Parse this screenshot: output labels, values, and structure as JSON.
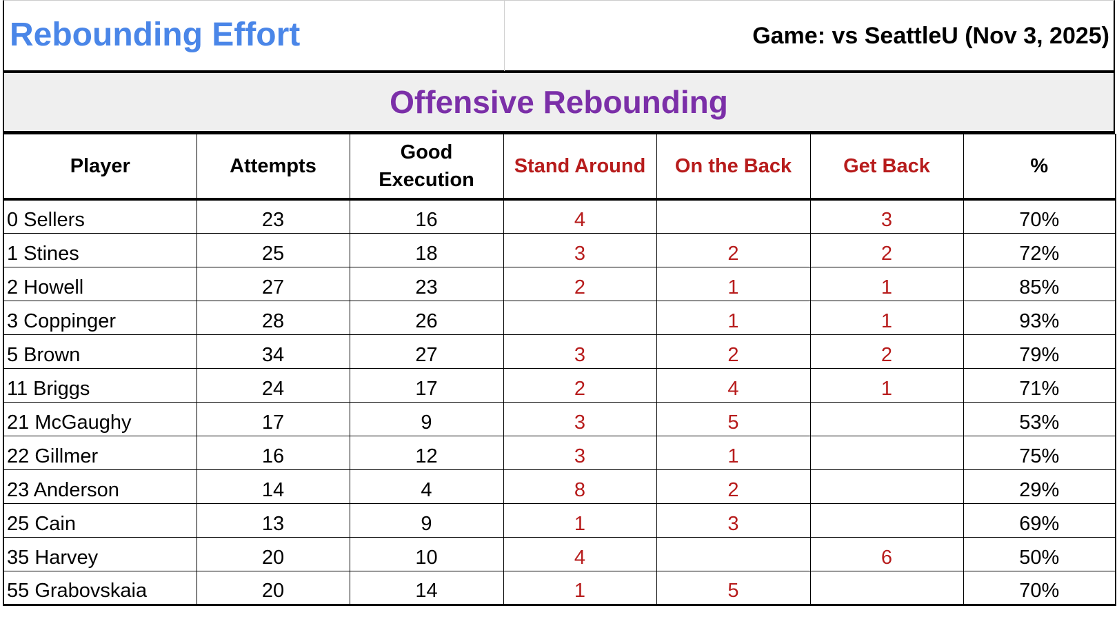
{
  "header": {
    "title": "Rebounding Effort",
    "game": "Game: vs SeattleU (Nov 3, 2025)"
  },
  "section_title": "Offensive Rebounding",
  "table": {
    "columns": [
      "Player",
      "Attempts",
      "Good Execution",
      "Stand Around",
      "On the Back",
      "Get Back",
      "%"
    ],
    "highlight_columns": [
      3,
      4,
      5
    ],
    "highlight_color": "#b71c1c",
    "rows": [
      [
        "0 Sellers",
        23,
        16,
        4,
        null,
        3,
        "70%"
      ],
      [
        "1 Stines",
        25,
        18,
        3,
        2,
        2,
        "72%"
      ],
      [
        "2 Howell",
        27,
        23,
        2,
        1,
        1,
        "85%"
      ],
      [
        "3 Coppinger",
        28,
        26,
        null,
        1,
        1,
        "93%"
      ],
      [
        "5 Brown",
        34,
        27,
        3,
        2,
        2,
        "79%"
      ],
      [
        "11 Briggs",
        24,
        17,
        2,
        4,
        1,
        "71%"
      ],
      [
        "21 McGaughy",
        17,
        9,
        3,
        5,
        null,
        "53%"
      ],
      [
        "22 Gillmer",
        16,
        12,
        3,
        1,
        null,
        "75%"
      ],
      [
        "23 Anderson",
        14,
        4,
        8,
        2,
        null,
        "29%"
      ],
      [
        "25 Cain",
        13,
        9,
        1,
        3,
        null,
        "69%"
      ],
      [
        "35 Harvey",
        20,
        10,
        4,
        null,
        6,
        "50%"
      ],
      [
        "55 Grabovskaia",
        20,
        14,
        1,
        5,
        null,
        "70%"
      ]
    ]
  }
}
